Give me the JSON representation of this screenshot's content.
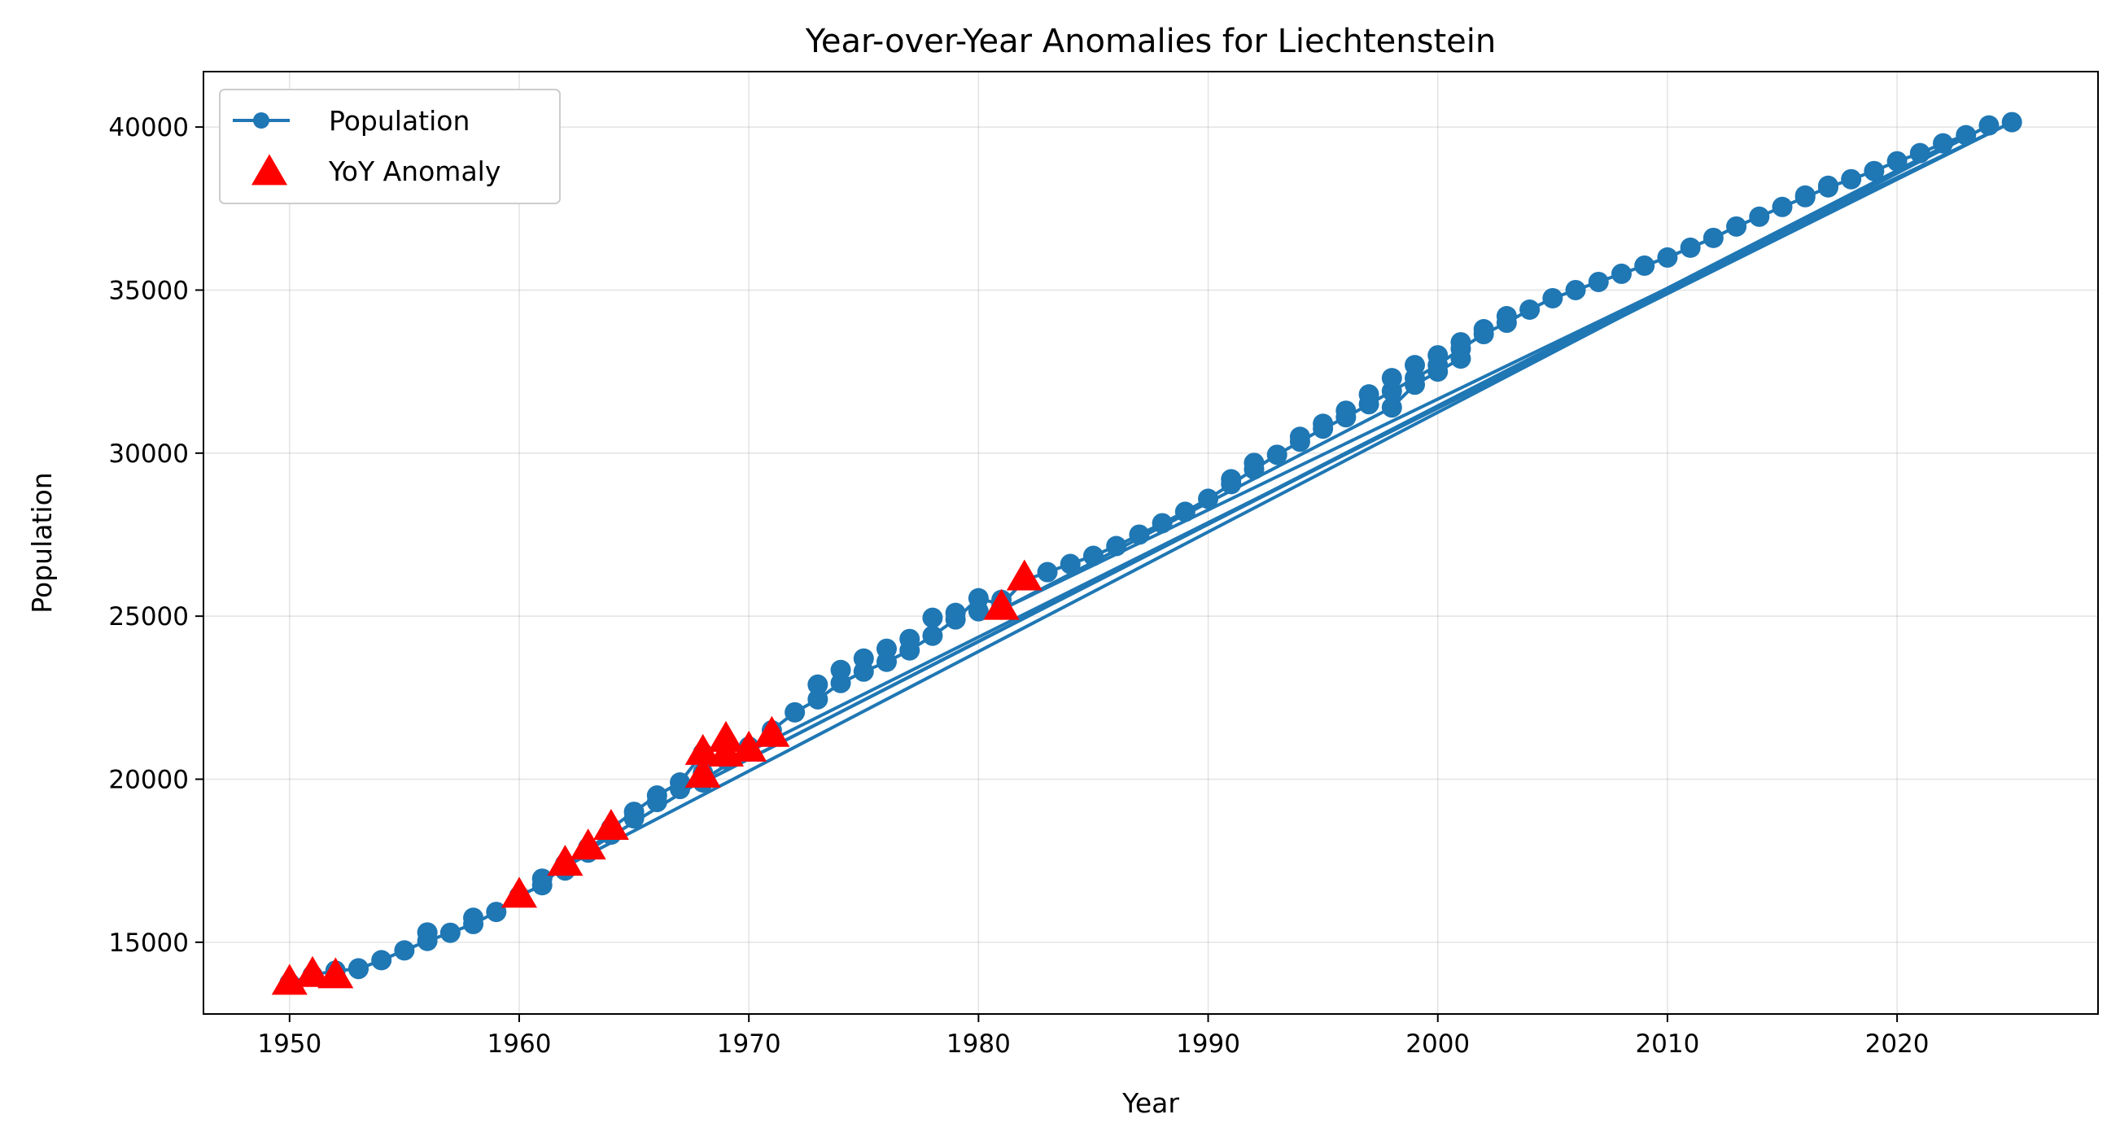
{
  "chart_data": {
    "type": "line",
    "title": "Year-over-Year Anomalies for Liechtenstein",
    "xlabel": "Year",
    "ylabel": "Population",
    "xlim": [
      1946.25,
      2028.75
    ],
    "ylim": [
      12800,
      41700
    ],
    "x_ticks": [
      1950,
      1960,
      1970,
      1980,
      1990,
      2000,
      2010,
      2020
    ],
    "y_ticks": [
      15000,
      20000,
      25000,
      30000,
      35000,
      40000
    ],
    "grid": true,
    "legend_position": "top-left",
    "series": [
      {
        "name": "Population",
        "kind": "line-marker",
        "color": "#1f77b4",
        "segments": [
          {
            "x": [
              1950,
              1951,
              1952,
              1953,
              1954,
              1955,
              1956,
              1957,
              1958,
              1959,
              1960,
              1961,
              1962,
              1963,
              1964,
              1965,
              1966,
              1967,
              1968,
              1969,
              1970,
              1971,
              1972,
              1973,
              1974,
              1975,
              1976,
              1977,
              1978,
              1979,
              1980,
              1981,
              1982,
              1983,
              1984,
              1985,
              1986,
              1987,
              1988,
              1989,
              1990,
              1991,
              1992,
              1993,
              1994,
              1995,
              1996,
              1997,
              1998,
              1999,
              2000,
              2001,
              2002,
              2003,
              2004,
              2005,
              2006,
              2007,
              2008,
              2009,
              2010,
              2011,
              2012,
              2013,
              2014,
              2015,
              2016,
              2017,
              2018,
              2019,
              2020,
              2021,
              2022,
              2023
            ],
            "y": [
              13750,
              13990,
              14130,
              14180,
              14450,
              14750,
              15040,
              15290,
              15560,
              15930,
              16420,
              16750,
              17400,
              17750,
              18500,
              19000,
              19500,
              19900,
              20800,
              21050,
              20900,
              21500,
              22050,
              22450,
              22950,
              23300,
              23600,
              23950,
              24400,
              24900,
              25550,
              25350,
              26100,
              26350,
              26600,
              26850,
              27150,
              27500,
              27850,
              28200,
              28600,
              29050,
              29500,
              29950,
              30350,
              30750,
              31100,
              31500,
              31900,
              32300,
              32700,
              33200,
              33650,
              34000,
              34400,
              34750,
              35000,
              35250,
              35500,
              35750,
              36000,
              36300,
              36600,
              36950,
              37250,
              37550,
              37850,
              38150,
              38400,
              38650,
              38950,
              39200,
              39500,
              39750
            ]
          },
          {
            "x": [
              2023,
              1968
            ],
            "y": [
              39750,
              19900
            ]
          },
          {
            "x": [
              1968,
              2024
            ],
            "y": [
              19900,
              40050
            ]
          },
          {
            "x": [
              2024,
              1961
            ],
            "y": [
              40050,
              16950
            ]
          },
          {
            "x": [
              1961,
              1970
            ],
            "y": [
              16950,
              20850
            ]
          },
          {
            "x": [
              1970,
              2025
            ],
            "y": [
              20850,
              40150
            ]
          },
          {
            "x": [
              2025,
              1981
            ],
            "y": [
              40150,
              25200
            ]
          },
          {
            "x": [
              1981,
              1998,
              1999,
              2000,
              2001
            ],
            "y": [
              25200,
              31400,
              32100,
              32500,
              32900
            ]
          }
        ],
        "extra_points": {
          "x": [
            1952,
            1953,
            1956,
            1958,
            1962,
            1963,
            1964,
            1965,
            1966,
            1967,
            1968,
            1969,
            1970,
            1973,
            1974,
            1975,
            1976,
            1977,
            1978,
            1979,
            1980,
            1981,
            1991,
            1992,
            1994,
            1995,
            1996,
            1997,
            1998,
            1999,
            2000,
            2001,
            2002,
            2003,
            2016,
            2017
          ],
          "y": [
            13950,
            14200,
            15300,
            15750,
            17200,
            17900,
            18300,
            18800,
            19300,
            19700,
            20200,
            20600,
            21000,
            22900,
            23350,
            23700,
            24000,
            24300,
            24950,
            25100,
            25150,
            25500,
            29200,
            29700,
            30500,
            30900,
            31300,
            31800,
            32300,
            32700,
            33000,
            33400,
            33800,
            34200,
            37900,
            38200
          ]
        }
      },
      {
        "name": "YoY Anomaly",
        "kind": "triangle-marker",
        "color": "#ff0000",
        "x": [
          1950,
          1951,
          1952,
          1960,
          1962,
          1963,
          1964,
          1968,
          1968,
          1969,
          1969,
          1970,
          1971,
          1981,
          1982
        ],
        "y": [
          13750,
          13990,
          13950,
          16420,
          17400,
          17900,
          18500,
          20100,
          20800,
          20750,
          21200,
          20900,
          21350,
          25250,
          26150
        ]
      }
    ]
  }
}
